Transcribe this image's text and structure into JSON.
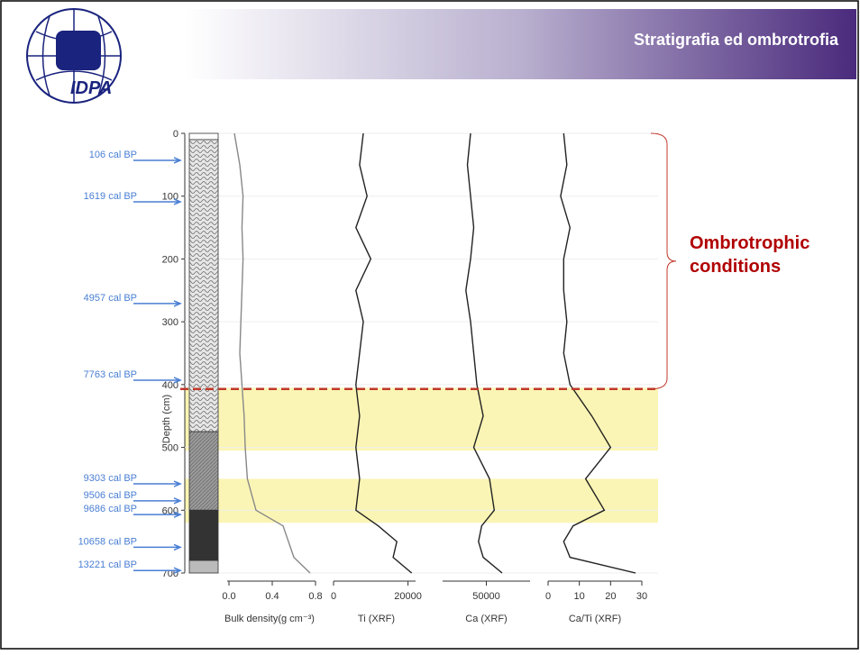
{
  "header": {
    "title": "Stratigrafia ed ombrotrofia",
    "logo_text": "IDPA"
  },
  "chart_data": {
    "type": "line",
    "y_label": "Depth (cm)",
    "ylim": [
      0,
      700
    ],
    "yticks": [
      0,
      100,
      200,
      300,
      400,
      500,
      600,
      700
    ],
    "grid": true,
    "depth": [
      0,
      50,
      100,
      150,
      200,
      250,
      300,
      350,
      400,
      450,
      500,
      550,
      600,
      625,
      650,
      675,
      700
    ],
    "panels": [
      {
        "x_label": "Bulk density(g cm⁻³)",
        "xlim": [
          -0.05,
          0.8
        ],
        "xticks": [
          {
            "value": 0,
            "label": "0.0"
          },
          0.4,
          0.8
        ],
        "color": "#888888",
        "values": [
          0.05,
          0.1,
          0.13,
          0.12,
          0.13,
          0.12,
          0.11,
          0.1,
          0.12,
          0.14,
          0.15,
          0.17,
          0.25,
          0.5,
          0.55,
          0.6,
          0.75
        ]
      },
      {
        "x_label": "Ti (XRF)",
        "xlim": [
          0,
          23000
        ],
        "xticks": [
          0,
          20000
        ],
        "color": "#222222",
        "values": [
          8000,
          7000,
          9000,
          6000,
          10000,
          6000,
          8000,
          7000,
          6000,
          7000,
          6000,
          7000,
          6000,
          12000,
          17000,
          16000,
          21000
        ]
      },
      {
        "x_label": "Ca (XRF)",
        "xlim": [
          20000,
          80000
        ],
        "xticks": [
          50000
        ],
        "color": "#222222",
        "values": [
          40000,
          38000,
          40000,
          42000,
          40000,
          37000,
          40000,
          42000,
          44000,
          48000,
          42000,
          52000,
          55000,
          47000,
          45000,
          48000,
          60000
        ]
      },
      {
        "x_label": "Ca/Ti (XRF)",
        "xlim": [
          0,
          30
        ],
        "xticks": [
          0,
          10,
          20,
          30
        ],
        "color": "#222222",
        "values": [
          5,
          6,
          4,
          7,
          5,
          5,
          6,
          5,
          7,
          14,
          20,
          12,
          18,
          8,
          5,
          7,
          28
        ]
      }
    ],
    "lithology": [
      {
        "top": 0,
        "bottom": 10,
        "pattern": "white"
      },
      {
        "top": 10,
        "bottom": 475,
        "pattern": "wave"
      },
      {
        "top": 475,
        "bottom": 600,
        "pattern": "grey"
      },
      {
        "top": 600,
        "bottom": 680,
        "pattern": "dark"
      },
      {
        "top": 680,
        "bottom": 700,
        "pattern": "light"
      }
    ],
    "ages": [
      {
        "label": "106 cal BP",
        "depth": 43
      },
      {
        "label": "1619 cal BP",
        "depth": 109
      },
      {
        "label": "4957 cal BP",
        "depth": 271
      },
      {
        "label": "7763 cal BP",
        "depth": 393
      },
      {
        "label": "9303 cal BP",
        "depth": 558
      },
      {
        "label": "9506 cal BP",
        "depth": 585
      },
      {
        "label": "9686 cal BP",
        "depth": 607
      },
      {
        "label": "10658 cal BP",
        "depth": 659
      },
      {
        "label": "13221 cal BP",
        "depth": 696
      }
    ],
    "bands": [
      [
        405,
        505
      ],
      [
        550,
        620
      ]
    ],
    "boundary_depth": 407,
    "annotation": [
      "Ombrotrophic",
      "conditions"
    ]
  }
}
